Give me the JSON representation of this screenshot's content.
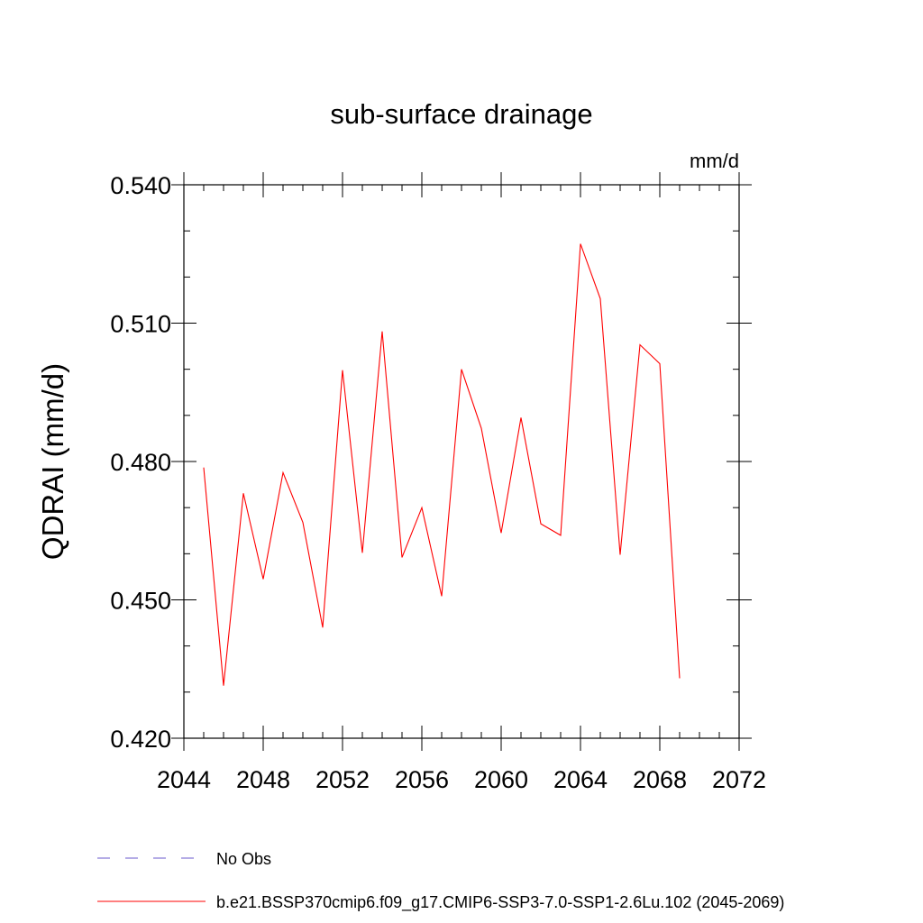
{
  "chart_data": {
    "type": "line",
    "title": "sub-surface drainage",
    "units": "mm/d",
    "ylabel": "QDRAI  (mm/d)",
    "xlabel": "",
    "xlim": [
      2044,
      2072
    ],
    "ylim": [
      0.42,
      0.54
    ],
    "xticks": [
      2044,
      2048,
      2052,
      2056,
      2060,
      2064,
      2068,
      2072
    ],
    "yticks": [
      0.42,
      0.45,
      0.48,
      0.51,
      0.54
    ],
    "xtick_labels": [
      "2044",
      "2048",
      "2052",
      "2056",
      "2060",
      "2064",
      "2068",
      "2072"
    ],
    "ytick_labels": [
      "0.420",
      "0.450",
      "0.480",
      "0.510",
      "0.540"
    ],
    "grid": false,
    "legend_position": "bottom",
    "legend": [
      {
        "label": "No Obs",
        "color": "#6a5acd",
        "style": "dashed"
      },
      {
        "label": "b.e21.BSSP370cmip6.f09_g17.CMIP6-SSP3-7.0-SSP1-2.6Lu.102 (2045-2069)",
        "color": "#ff0000",
        "style": "solid"
      }
    ],
    "series": [
      {
        "name": "b.e21.BSSP370cmip6.f09_g17.CMIP6-SSP3-7.0-SSP1-2.6Lu.102 (2045-2069)",
        "color": "#ff0000",
        "x": [
          2045,
          2046,
          2047,
          2048,
          2049,
          2050,
          2051,
          2052,
          2053,
          2054,
          2055,
          2056,
          2057,
          2058,
          2059,
          2060,
          2061,
          2062,
          2063,
          2064,
          2065,
          2066,
          2067,
          2068,
          2069
        ],
        "y": [
          0.4787,
          0.4314,
          0.4731,
          0.4545,
          0.4776,
          0.4668,
          0.444,
          0.4998,
          0.4602,
          0.5082,
          0.4592,
          0.47,
          0.4508,
          0.5,
          0.4872,
          0.4645,
          0.4895,
          0.4665,
          0.464,
          0.5272,
          0.5153,
          0.4598,
          0.5053,
          0.5012,
          0.433
        ]
      }
    ]
  }
}
